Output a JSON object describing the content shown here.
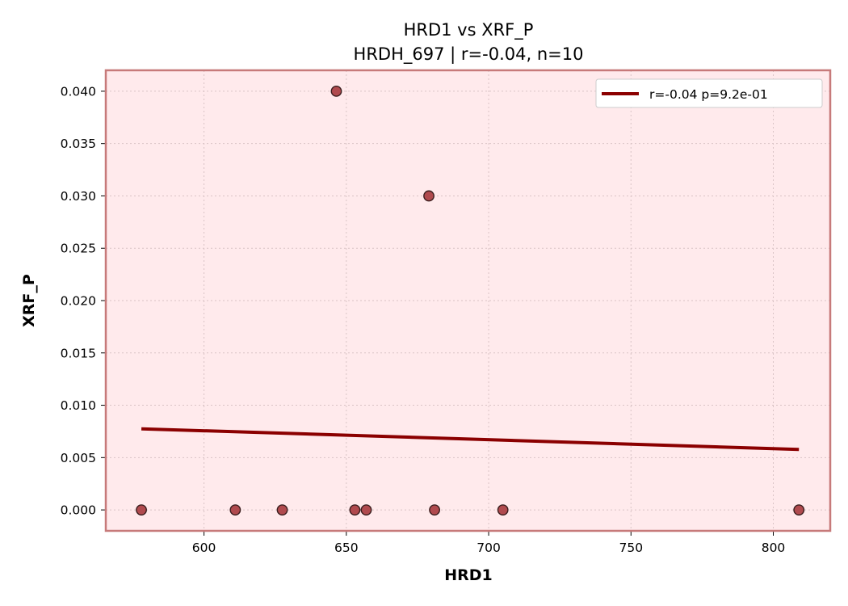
{
  "chart_data": {
    "type": "scatter",
    "title": "HRD1 vs XRF_P",
    "subtitle": "HRDH_697 | r=-0.04, n=10",
    "xlabel": "HRD1",
    "ylabel": "XRF_P",
    "xlim": [
      565.5,
      820
    ],
    "ylim": [
      -0.002,
      0.042
    ],
    "xticks": [
      "600",
      "650",
      "700",
      "750",
      "800"
    ],
    "xtick_values": [
      600,
      650,
      700,
      750,
      800
    ],
    "yticks": [
      "0.000",
      "0.005",
      "0.010",
      "0.015",
      "0.020",
      "0.025",
      "0.030",
      "0.035",
      "0.040"
    ],
    "ytick_values": [
      0,
      0.005,
      0.01,
      0.015,
      0.02,
      0.025,
      0.03,
      0.035,
      0.04
    ],
    "grid": true,
    "legend_position": "top-right",
    "points": [
      {
        "x": 578,
        "y": 0.0
      },
      {
        "x": 611,
        "y": 0.0
      },
      {
        "x": 627.5,
        "y": 0.0
      },
      {
        "x": 646.5,
        "y": 0.04
      },
      {
        "x": 653,
        "y": 0.0
      },
      {
        "x": 657,
        "y": 0.0
      },
      {
        "x": 679,
        "y": 0.03
      },
      {
        "x": 681,
        "y": 0.0
      },
      {
        "x": 705,
        "y": 0.0
      },
      {
        "x": 809,
        "y": 0.0
      }
    ],
    "fit_line": {
      "label": "r=-0.04  p=9.2e-01",
      "x": [
        578,
        809
      ],
      "y": [
        0.00775,
        0.00578
      ]
    },
    "colors": {
      "plot_background": "#ffeaec",
      "frame": "#c77a7a",
      "point_fill": "#b04a4e",
      "point_edge": "#3a1e1e",
      "fit_line": "#8b0000",
      "grid": "#d9c3c5"
    }
  }
}
